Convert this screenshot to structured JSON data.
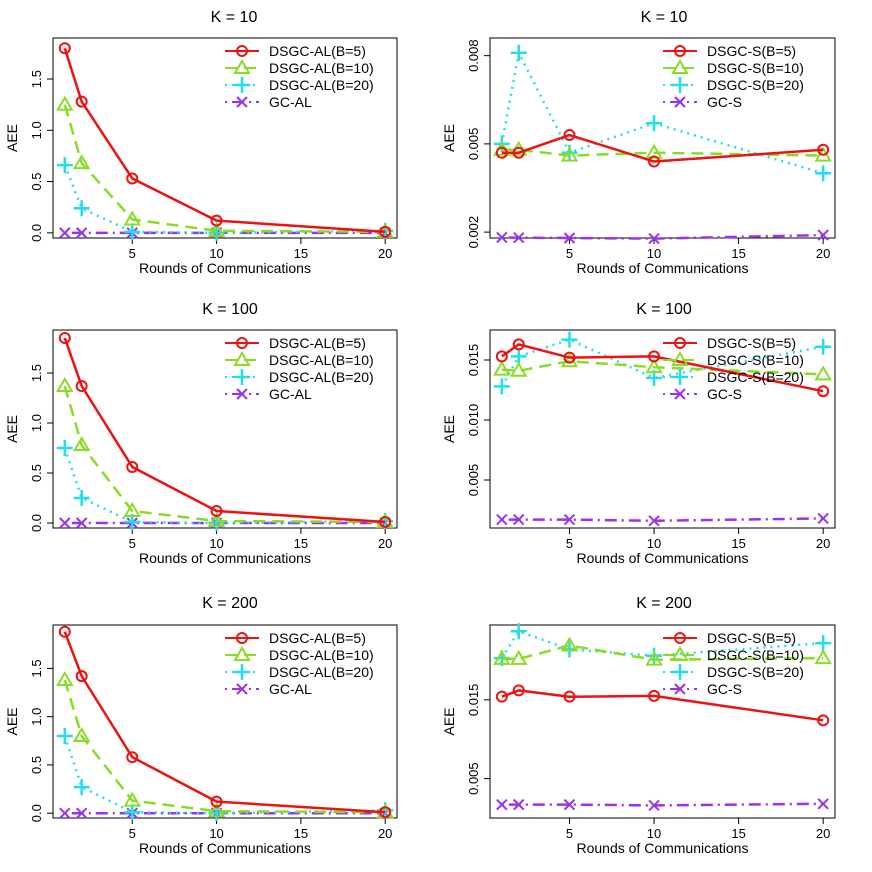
{
  "xlabel": "Rounds of Communications",
  "ylabel": "AEE",
  "colors": {
    "red": "#ee1111",
    "green": "#88dd22",
    "cyan": "#22ddee",
    "purple": "#9933ee"
  },
  "chart_data": [
    {
      "type": "line",
      "title": "K = 10",
      "xlabel": "Rounds of Communications",
      "ylabel": "AEE",
      "x": [
        1,
        2,
        5,
        10,
        20
      ],
      "xticks": [
        5,
        10,
        15,
        20
      ],
      "xlim": [
        0.3,
        20.7
      ],
      "ylim": [
        -0.05,
        1.9
      ],
      "yticks": [
        "0.0",
        "0.5",
        "1.0",
        "1.5"
      ],
      "ytick_values": [
        0,
        0.5,
        1.0,
        1.5
      ],
      "legend": "top-right",
      "series": [
        {
          "name": "DSGC-AL(B=5)",
          "color": "red",
          "style": "solid",
          "marker": "circle",
          "values": [
            1.8,
            1.28,
            0.53,
            0.12,
            0.01
          ]
        },
        {
          "name": "DSGC-AL(B=10)",
          "color": "green",
          "style": "dashed",
          "marker": "triangle",
          "values": [
            1.25,
            0.68,
            0.13,
            0.02,
            0.01
          ]
        },
        {
          "name": "DSGC-AL(B=20)",
          "color": "cyan",
          "style": "dotted",
          "marker": "plus",
          "values": [
            0.66,
            0.24,
            0.01,
            0.0,
            0.02
          ]
        },
        {
          "name": "GC-AL",
          "color": "purple",
          "style": "dotdash",
          "marker": "cross",
          "values": [
            0.0,
            0.0,
            0.0,
            0.0,
            0.0
          ]
        }
      ]
    },
    {
      "type": "line",
      "title": "K = 10",
      "xlabel": "Rounds of Communications",
      "ylabel": "AEE",
      "x": [
        1,
        2,
        5,
        10,
        20
      ],
      "xticks": [
        5,
        10,
        15,
        20
      ],
      "xlim": [
        0.3,
        20.7
      ],
      "ylim": [
        0.0018,
        0.0086
      ],
      "yticks": [
        "0.002",
        "0.005",
        "0.008"
      ],
      "ytick_values": [
        0.002,
        0.005,
        0.008
      ],
      "legend": "top-right",
      "series": [
        {
          "name": "DSGC-S(B=5)",
          "color": "red",
          "style": "solid",
          "marker": "circle",
          "values": [
            0.0047,
            0.0047,
            0.0053,
            0.0044,
            0.0048
          ]
        },
        {
          "name": "DSGC-S(B=10)",
          "color": "green",
          "style": "dashed",
          "marker": "triangle",
          "values": [
            0.0048,
            0.0048,
            0.0046,
            0.0047,
            0.0046
          ]
        },
        {
          "name": "DSGC-S(B=20)",
          "color": "cyan",
          "style": "dotted",
          "marker": "plus",
          "values": [
            0.005,
            0.0081,
            0.0047,
            0.0057,
            0.004
          ]
        },
        {
          "name": "GC-S",
          "color": "purple",
          "style": "dotdash",
          "marker": "cross",
          "values": [
            0.00182,
            0.00181,
            0.0018,
            0.00178,
            0.0019
          ]
        }
      ]
    },
    {
      "type": "line",
      "title": "K = 100",
      "xlabel": "Rounds of Communications",
      "ylabel": "AEE",
      "x": [
        1,
        2,
        5,
        10,
        20
      ],
      "xticks": [
        5,
        10,
        15,
        20
      ],
      "xlim": [
        0.3,
        20.7
      ],
      "ylim": [
        -0.05,
        1.93
      ],
      "yticks": [
        "0.0",
        "0.5",
        "1.0",
        "1.5"
      ],
      "ytick_values": [
        0,
        0.5,
        1.0,
        1.5
      ],
      "legend": "top-right",
      "series": [
        {
          "name": "DSGC-AL(B=5)",
          "color": "red",
          "style": "solid",
          "marker": "circle",
          "values": [
            1.85,
            1.37,
            0.56,
            0.12,
            0.01
          ]
        },
        {
          "name": "DSGC-AL(B=10)",
          "color": "green",
          "style": "dashed",
          "marker": "triangle",
          "values": [
            1.37,
            0.78,
            0.12,
            0.02,
            0.01
          ]
        },
        {
          "name": "DSGC-AL(B=20)",
          "color": "cyan",
          "style": "dotted",
          "marker": "plus",
          "values": [
            0.75,
            0.25,
            0.01,
            0.0,
            0.02
          ]
        },
        {
          "name": "GC-AL",
          "color": "purple",
          "style": "dotdash",
          "marker": "cross",
          "values": [
            0.0,
            0.0,
            0.0,
            0.0,
            0.0
          ]
        }
      ]
    },
    {
      "type": "line",
      "title": "K = 100",
      "xlabel": "Rounds of Communications",
      "ylabel": "AEE",
      "x": [
        1,
        2,
        5,
        10,
        20
      ],
      "xticks": [
        5,
        10,
        15,
        20
      ],
      "xlim": [
        0.3,
        20.7
      ],
      "ylim": [
        0.001,
        0.0175
      ],
      "yticks": [
        "0.005",
        "0.010",
        "0.015"
      ],
      "ytick_values": [
        0.005,
        0.01,
        0.015
      ],
      "legend": "top-right",
      "series": [
        {
          "name": "DSGC-S(B=5)",
          "color": "red",
          "style": "solid",
          "marker": "circle",
          "values": [
            0.0153,
            0.0163,
            0.0152,
            0.0153,
            0.0124
          ]
        },
        {
          "name": "DSGC-S(B=10)",
          "color": "green",
          "style": "dashed",
          "marker": "triangle",
          "values": [
            0.0142,
            0.0141,
            0.0149,
            0.0144,
            0.0138
          ]
        },
        {
          "name": "DSGC-S(B=20)",
          "color": "cyan",
          "style": "dotted",
          "marker": "plus",
          "values": [
            0.0128,
            0.0153,
            0.0167,
            0.0135,
            0.0161
          ]
        },
        {
          "name": "GC-S",
          "color": "purple",
          "style": "dotdash",
          "marker": "cross",
          "values": [
            0.0017,
            0.0017,
            0.0017,
            0.0016,
            0.0018
          ]
        }
      ]
    },
    {
      "type": "line",
      "title": "K = 200",
      "xlabel": "Rounds of Communications",
      "ylabel": "AEE",
      "x": [
        1,
        2,
        5,
        10,
        20
      ],
      "xticks": [
        5,
        10,
        15,
        20
      ],
      "xlim": [
        0.3,
        20.7
      ],
      "ylim": [
        -0.05,
        1.95
      ],
      "yticks": [
        "0.0",
        "0.5",
        "1.0",
        "1.5"
      ],
      "ytick_values": [
        0,
        0.5,
        1.0,
        1.5
      ],
      "legend": "top-right",
      "series": [
        {
          "name": "DSGC-AL(B=5)",
          "color": "red",
          "style": "solid",
          "marker": "circle",
          "values": [
            1.88,
            1.42,
            0.58,
            0.12,
            0.01
          ]
        },
        {
          "name": "DSGC-AL(B=10)",
          "color": "green",
          "style": "dashed",
          "marker": "triangle",
          "values": [
            1.38,
            0.8,
            0.13,
            0.02,
            0.01
          ]
        },
        {
          "name": "DSGC-AL(B=20)",
          "color": "cyan",
          "style": "dotted",
          "marker": "plus",
          "values": [
            0.8,
            0.27,
            0.01,
            0.0,
            0.03
          ]
        },
        {
          "name": "GC-AL",
          "color": "purple",
          "style": "dotdash",
          "marker": "cross",
          "values": [
            0.0,
            0.0,
            0.0,
            0.0,
            0.0
          ]
        }
      ]
    },
    {
      "type": "line",
      "title": "K = 200",
      "xlabel": "Rounds of Communications",
      "ylabel": "AEE",
      "x": [
        1,
        2,
        5,
        10,
        20
      ],
      "xticks": [
        5,
        10,
        15,
        20
      ],
      "xlim": [
        0.3,
        20.7
      ],
      "ylim": [
        0.0,
        0.0245
      ],
      "yticks": [
        "0.005",
        "0.015"
      ],
      "ytick_values": [
        0.005,
        0.015
      ],
      "legend": "top-right",
      "series": [
        {
          "name": "DSGC-S(B=5)",
          "color": "red",
          "style": "solid",
          "marker": "circle",
          "values": [
            0.0154,
            0.0162,
            0.0154,
            0.0155,
            0.0124
          ]
        },
        {
          "name": "DSGC-S(B=10)",
          "color": "green",
          "style": "dashed",
          "marker": "triangle",
          "values": [
            0.0202,
            0.0202,
            0.0219,
            0.0201,
            0.0203
          ]
        },
        {
          "name": "DSGC-S(B=20)",
          "color": "cyan",
          "style": "dotted",
          "marker": "plus",
          "values": [
            0.0203,
            0.0237,
            0.0214,
            0.0206,
            0.0222
          ]
        },
        {
          "name": "GC-S",
          "color": "purple",
          "style": "dotdash",
          "marker": "cross",
          "values": [
            0.0017,
            0.0017,
            0.0017,
            0.0016,
            0.0018
          ]
        }
      ]
    }
  ]
}
